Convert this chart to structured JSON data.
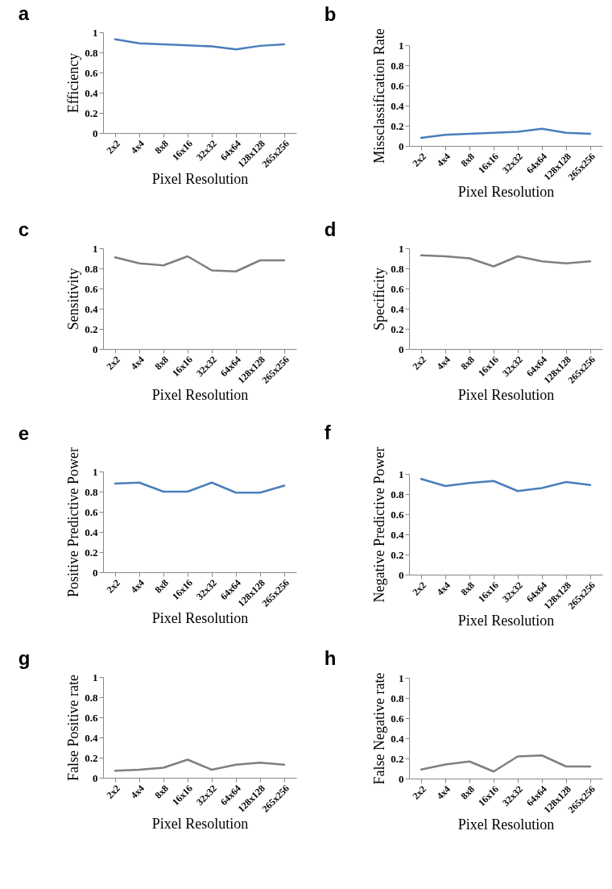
{
  "chart_data": [
    {
      "type": "line",
      "title": "a",
      "xlabel": "Pixel Resolution",
      "ylabel": "Efficiency",
      "categories": [
        "2x2",
        "4x4",
        "8x8",
        "16x16",
        "32x32",
        "64x64",
        "128x128",
        "265x256"
      ],
      "series": [
        {
          "color": "#4a7ebb",
          "values": [
            0.93,
            0.89,
            0.88,
            0.87,
            0.86,
            0.83,
            0.865,
            0.88
          ]
        }
      ],
      "ylim": [
        0,
        1
      ],
      "yticks": [
        0,
        0.2,
        0.4,
        0.6,
        0.8,
        1
      ],
      "grid": false
    },
    {
      "type": "line",
      "title": "b",
      "xlabel": "Pixel Resolution",
      "ylabel": "Missclassification Rate",
      "categories": [
        "2x2",
        "4x4",
        "8x8",
        "16x16",
        "32x32",
        "64x64",
        "128x128",
        "265x256"
      ],
      "series": [
        {
          "color": "#4a7ebb",
          "values": [
            0.08,
            0.11,
            0.12,
            0.13,
            0.14,
            0.17,
            0.13,
            0.12
          ]
        }
      ],
      "ylim": [
        0,
        1
      ],
      "yticks": [
        0,
        0.2,
        0.4,
        0.6,
        0.8,
        1
      ],
      "grid": false
    },
    {
      "type": "line",
      "title": "c",
      "xlabel": "Pixel Resolution",
      "ylabel": "Sensitivity",
      "categories": [
        "2x2",
        "4x4",
        "8x8",
        "16x16",
        "32x32",
        "64x64",
        "128x128",
        "265x256"
      ],
      "series": [
        {
          "color": "#7f7f7f",
          "values": [
            0.91,
            0.85,
            0.83,
            0.92,
            0.78,
            0.77,
            0.88,
            0.88
          ]
        }
      ],
      "ylim": [
        0,
        1
      ],
      "yticks": [
        0,
        0.2,
        0.4,
        0.6,
        0.8,
        1
      ],
      "grid": false
    },
    {
      "type": "line",
      "title": "d",
      "xlabel": "Pixel Resolution",
      "ylabel": "Specificity",
      "categories": [
        "2x2",
        "4x4",
        "8x8",
        "16x16",
        "32x32",
        "64x64",
        "128x128",
        "265x256"
      ],
      "series": [
        {
          "color": "#7f7f7f",
          "values": [
            0.93,
            0.92,
            0.9,
            0.82,
            0.92,
            0.87,
            0.85,
            0.87
          ]
        }
      ],
      "ylim": [
        0,
        1
      ],
      "yticks": [
        0,
        0.2,
        0.4,
        0.6,
        0.8,
        1
      ],
      "grid": false
    },
    {
      "type": "line",
      "title": "e",
      "xlabel": "Pixel Resolution",
      "ylabel": "Positive Predictive Power",
      "categories": [
        "2x2",
        "4x4",
        "8x8",
        "16x16",
        "32x32",
        "64x64",
        "128x128",
        "265x256"
      ],
      "series": [
        {
          "color": "#4a7ebb",
          "values": [
            0.88,
            0.89,
            0.8,
            0.8,
            0.89,
            0.79,
            0.79,
            0.86
          ]
        }
      ],
      "ylim": [
        0,
        1
      ],
      "yticks": [
        0,
        0.2,
        0.4,
        0.6,
        0.8,
        1
      ],
      "grid": false
    },
    {
      "type": "line",
      "title": "f",
      "xlabel": "Pixel Resolution",
      "ylabel": "Negative Predictive Power",
      "categories": [
        "2x2",
        "4x4",
        "8x8",
        "16x16",
        "32x32",
        "64x64",
        "128x128",
        "265x256"
      ],
      "series": [
        {
          "color": "#4a7ebb",
          "values": [
            0.95,
            0.88,
            0.91,
            0.93,
            0.83,
            0.86,
            0.92,
            0.89
          ]
        }
      ],
      "ylim": [
        0,
        1
      ],
      "yticks": [
        0,
        0.2,
        0.4,
        0.6,
        0.8,
        1
      ],
      "grid": false
    },
    {
      "type": "line",
      "title": "g",
      "xlabel": "Pixel Resolution",
      "ylabel": "False Positive rate",
      "categories": [
        "2x2",
        "4x4",
        "8x8",
        "16x16",
        "32x32",
        "64x64",
        "128x128",
        "265x256"
      ],
      "series": [
        {
          "color": "#7f7f7f",
          "values": [
            0.07,
            0.08,
            0.1,
            0.18,
            0.08,
            0.13,
            0.15,
            0.13
          ]
        }
      ],
      "ylim": [
        0,
        1
      ],
      "yticks": [
        0,
        0.2,
        0.4,
        0.6,
        0.8,
        1
      ],
      "grid": false
    },
    {
      "type": "line",
      "title": "h",
      "xlabel": "Pixel Resolution",
      "ylabel": "False Negative rate",
      "categories": [
        "2x2",
        "4x4",
        "8x8",
        "16x16",
        "32x32",
        "64x64",
        "128x128",
        "265x256"
      ],
      "series": [
        {
          "color": "#7f7f7f",
          "values": [
            0.09,
            0.14,
            0.17,
            0.07,
            0.22,
            0.23,
            0.12,
            0.12
          ]
        }
      ],
      "ylim": [
        0,
        1
      ],
      "yticks": [
        0,
        0.2,
        0.4,
        0.6,
        0.8,
        1
      ],
      "grid": false
    }
  ]
}
